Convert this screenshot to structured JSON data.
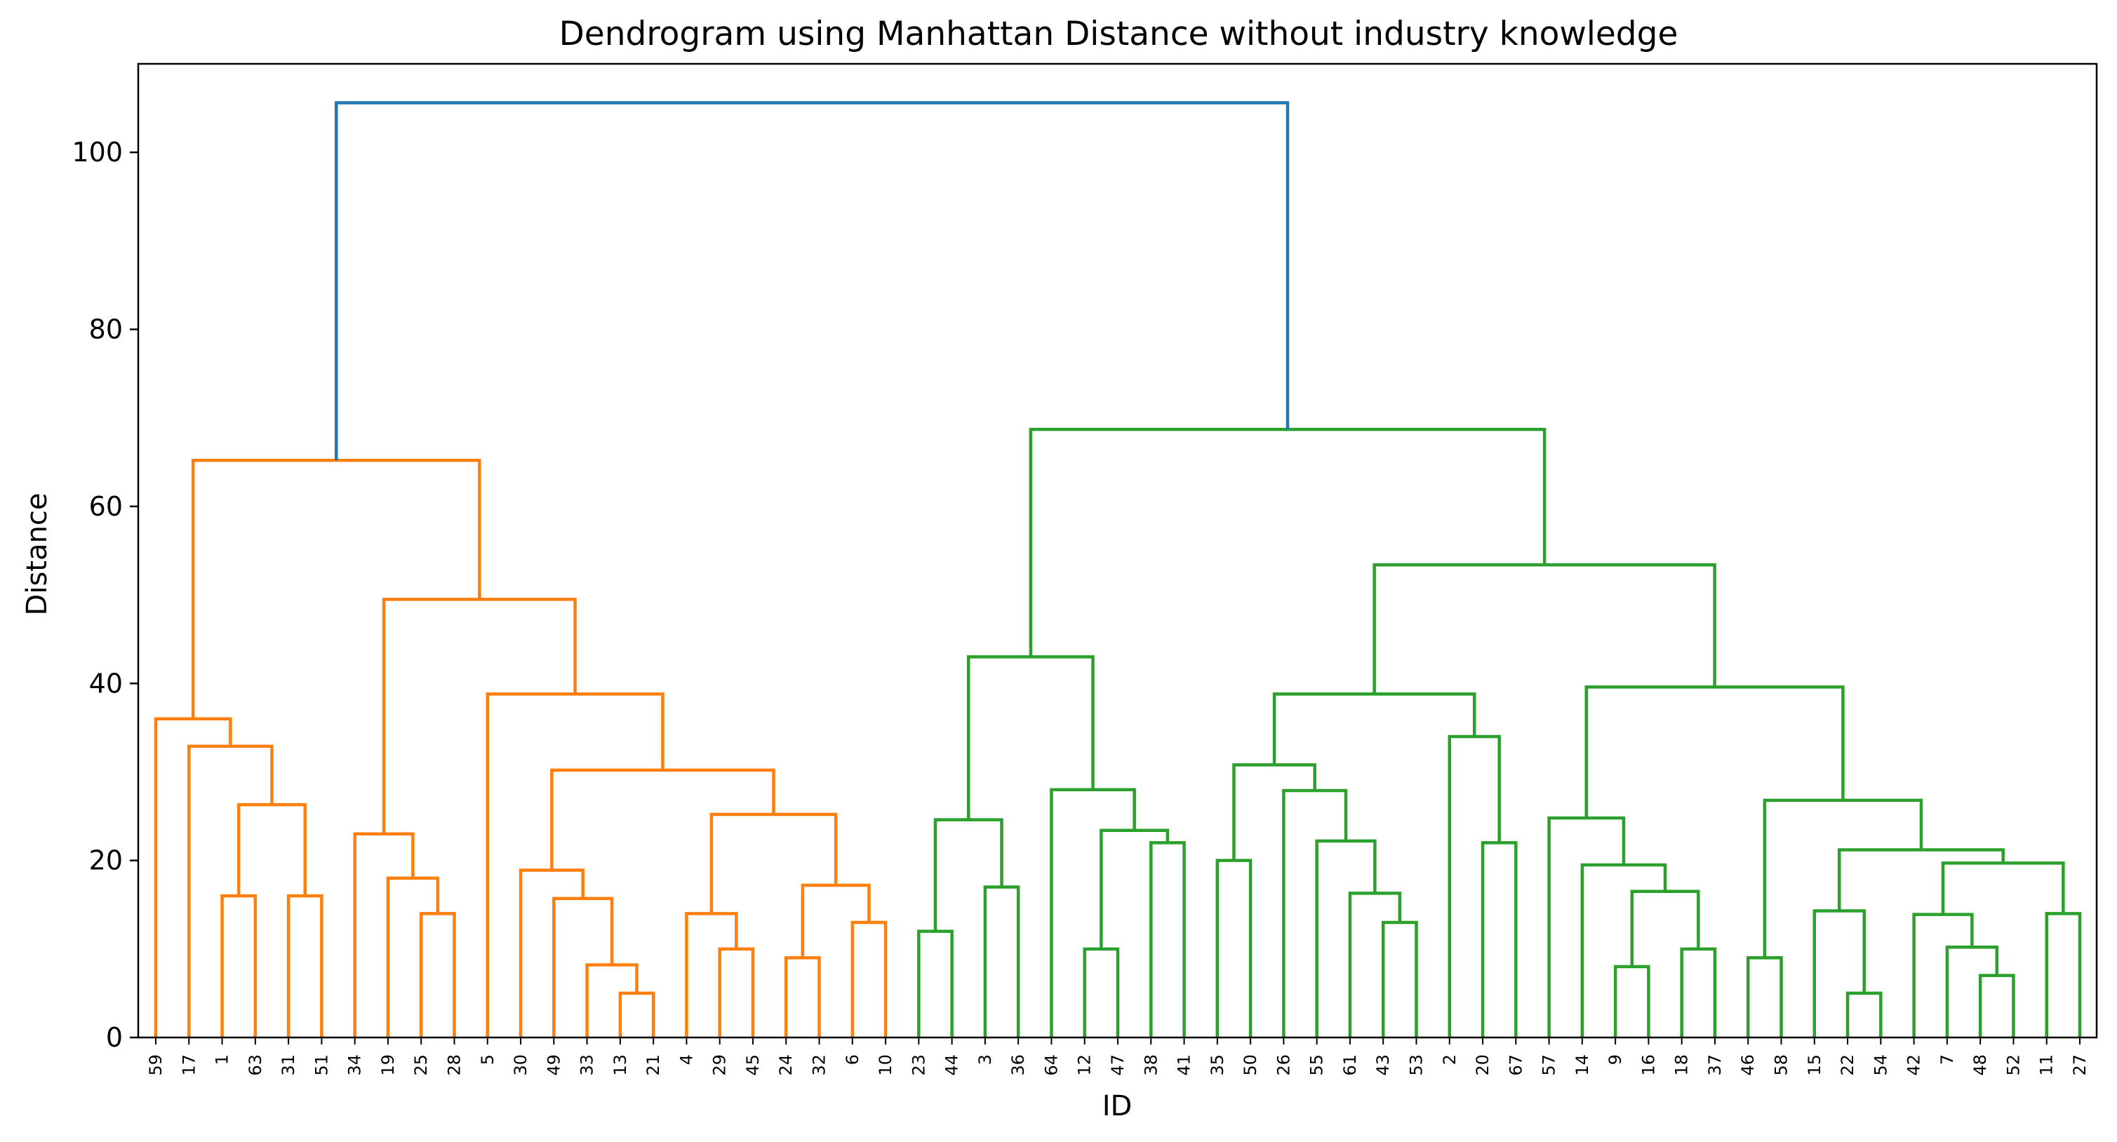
{
  "chart_data": {
    "type": "dendrogram",
    "title": "Dendrogram using Manhattan Distance without industry knowledge",
    "xlabel": "ID",
    "ylabel": "Distance",
    "ylim": [
      0,
      110
    ],
    "yticks": [
      0,
      20,
      40,
      60,
      80,
      100
    ],
    "grid": false,
    "colors": {
      "above_threshold": "#1f77b4",
      "cluster_1": "#ff7f0e",
      "cluster_2": "#2ca02c"
    },
    "leaves": [
      "59",
      "17",
      "1",
      "63",
      "31",
      "51",
      "34",
      "19",
      "25",
      "28",
      "5",
      "30",
      "49",
      "33",
      "13",
      "21",
      "4",
      "29",
      "45",
      "24",
      "32",
      "6",
      "10",
      "23",
      "44",
      "3",
      "36",
      "64",
      "12",
      "47",
      "38",
      "41",
      "35",
      "50",
      "26",
      "55",
      "61",
      "43",
      "53",
      "2",
      "20",
      "67",
      "57",
      "14",
      "9",
      "16",
      "18",
      "37",
      "46",
      "58",
      "15",
      "22",
      "54",
      "42",
      "7",
      "48",
      "52",
      "11",
      "27"
    ],
    "merges": [
      {
        "a": "1",
        "b": "63",
        "height": 16.0,
        "cluster": "cluster_1"
      },
      {
        "a": "31",
        "b": "51",
        "height": 16.0,
        "cluster": "cluster_1"
      },
      {
        "a": "[1,63]",
        "b": "[31,51]",
        "height": 26.3,
        "cluster": "cluster_1"
      },
      {
        "a": "17",
        "b": "[1,63,31,51]",
        "height": 32.9,
        "cluster": "cluster_1"
      },
      {
        "a": "59",
        "b": "[17,1,63,31,51]",
        "height": 36.0,
        "cluster": "cluster_1"
      },
      {
        "a": "25",
        "b": "28",
        "height": 14.0,
        "cluster": "cluster_1"
      },
      {
        "a": "19",
        "b": "[25,28]",
        "height": 18.0,
        "cluster": "cluster_1"
      },
      {
        "a": "34",
        "b": "[19,25,28]",
        "height": 23.0,
        "cluster": "cluster_1"
      },
      {
        "a": "13",
        "b": "21",
        "height": 5.0,
        "cluster": "cluster_1"
      },
      {
        "a": "33",
        "b": "[13,21]",
        "height": 8.2,
        "cluster": "cluster_1"
      },
      {
        "a": "49",
        "b": "[33,13,21]",
        "height": 15.7,
        "cluster": "cluster_1"
      },
      {
        "a": "30",
        "b": "[49,33,13,21]",
        "height": 18.9,
        "cluster": "cluster_1"
      },
      {
        "a": "29",
        "b": "45",
        "height": 10.0,
        "cluster": "cluster_1"
      },
      {
        "a": "4",
        "b": "[29,45]",
        "height": 14.0,
        "cluster": "cluster_1"
      },
      {
        "a": "24",
        "b": "32",
        "height": 9.0,
        "cluster": "cluster_1"
      },
      {
        "a": "6",
        "b": "10",
        "height": 13.0,
        "cluster": "cluster_1"
      },
      {
        "a": "[24,32]",
        "b": "[6,10]",
        "height": 17.2,
        "cluster": "cluster_1"
      },
      {
        "a": "[4,29,45]",
        "b": "[24,32,6,10]",
        "height": 25.2,
        "cluster": "cluster_1"
      },
      {
        "a": "[30,...,21]",
        "b": "[4,...,10]",
        "height": 30.2,
        "cluster": "cluster_1"
      },
      {
        "a": "5",
        "b": "[30,...,10]",
        "height": 38.8,
        "cluster": "cluster_1"
      },
      {
        "a": "[34,19,25,28]",
        "b": "[5,...,10]",
        "height": 49.5,
        "cluster": "cluster_1"
      },
      {
        "a": "[59,...,51]",
        "b": "[34,...,10]",
        "height": 65.2,
        "cluster": "cluster_1"
      },
      {
        "a": "23",
        "b": "44",
        "height": 12.0,
        "cluster": "cluster_2"
      },
      {
        "a": "3",
        "b": "36",
        "height": 17.0,
        "cluster": "cluster_2"
      },
      {
        "a": "[23,44]",
        "b": "[3,36]",
        "height": 24.6,
        "cluster": "cluster_2"
      },
      {
        "a": "12",
        "b": "47",
        "height": 10.0,
        "cluster": "cluster_2"
      },
      {
        "a": "38",
        "b": "41",
        "height": 22.0,
        "cluster": "cluster_2"
      },
      {
        "a": "[12,47]",
        "b": "[38,41]",
        "height": 23.4,
        "cluster": "cluster_2"
      },
      {
        "a": "64",
        "b": "[12,47,38,41]",
        "height": 28.0,
        "cluster": "cluster_2"
      },
      {
        "a": "[23,44,3,36]",
        "b": "[64,...,41]",
        "height": 43.0,
        "cluster": "cluster_2"
      },
      {
        "a": "35",
        "b": "50",
        "height": 20.0,
        "cluster": "cluster_2"
      },
      {
        "a": "43",
        "b": "53",
        "height": 13.0,
        "cluster": "cluster_2"
      },
      {
        "a": "61",
        "b": "[43,53]",
        "height": 16.3,
        "cluster": "cluster_2"
      },
      {
        "a": "55",
        "b": "[61,43,53]",
        "height": 22.2,
        "cluster": "cluster_2"
      },
      {
        "a": "26",
        "b": "[55,61,43,53]",
        "height": 27.9,
        "cluster": "cluster_2"
      },
      {
        "a": "[35,50]",
        "b": "[26,...,53]",
        "height": 30.8,
        "cluster": "cluster_2"
      },
      {
        "a": "20",
        "b": "67",
        "height": 22.0,
        "cluster": "cluster_2"
      },
      {
        "a": "2",
        "b": "[20,67]",
        "height": 34.0,
        "cluster": "cluster_2"
      },
      {
        "a": "[35,...,53]",
        "b": "[2,20,67]",
        "height": 38.8,
        "cluster": "cluster_2"
      },
      {
        "a": "9",
        "b": "16",
        "height": 8.0,
        "cluster": "cluster_2"
      },
      {
        "a": "18",
        "b": "37",
        "height": 10.0,
        "cluster": "cluster_2"
      },
      {
        "a": "[9,16]",
        "b": "[18,37]",
        "height": 16.5,
        "cluster": "cluster_2"
      },
      {
        "a": "14",
        "b": "[9,16,18,37]",
        "height": 19.5,
        "cluster": "cluster_2"
      },
      {
        "a": "57",
        "b": "[14,...,37]",
        "height": 24.8,
        "cluster": "cluster_2"
      },
      {
        "a": "46",
        "b": "58",
        "height": 9.0,
        "cluster": "cluster_2"
      },
      {
        "a": "22",
        "b": "54",
        "height": 5.0,
        "cluster": "cluster_2"
      },
      {
        "a": "15",
        "b": "[22,54]",
        "height": 14.3,
        "cluster": "cluster_2"
      },
      {
        "a": "52",
        "b": "48",
        "height": 7.0,
        "cluster": "cluster_2"
      },
      {
        "a": "7",
        "b": "[48,52]",
        "height": 10.2,
        "cluster": "cluster_2"
      },
      {
        "a": "42",
        "b": "[7,48,52]",
        "height": 13.9,
        "cluster": "cluster_2"
      },
      {
        "a": "11",
        "b": "27",
        "height": 14.0,
        "cluster": "cluster_2"
      },
      {
        "a": "[42,7,48,52]",
        "b": "[11,27]",
        "height": 19.7,
        "cluster": "cluster_2"
      },
      {
        "a": "[15,22,54]",
        "b": "[42,...,27]",
        "height": 21.2,
        "cluster": "cluster_2"
      },
      {
        "a": "[46,58]",
        "b": "[15,...,27]",
        "height": 26.8,
        "cluster": "cluster_2"
      },
      {
        "a": "[57,...,37]",
        "b": "[46,...,27]",
        "height": 39.6,
        "cluster": "cluster_2"
      },
      {
        "a": "[35,...,67]",
        "b": "[57,...,27]",
        "height": 53.4,
        "cluster": "cluster_2"
      },
      {
        "a": "[23,...,41]",
        "b": "[35,...,27]",
        "height": 68.7,
        "cluster": "cluster_2"
      },
      {
        "a": "[59,...,10]",
        "b": "[23,...,27]",
        "height": 105.6,
        "cluster": "above_threshold"
      }
    ]
  }
}
